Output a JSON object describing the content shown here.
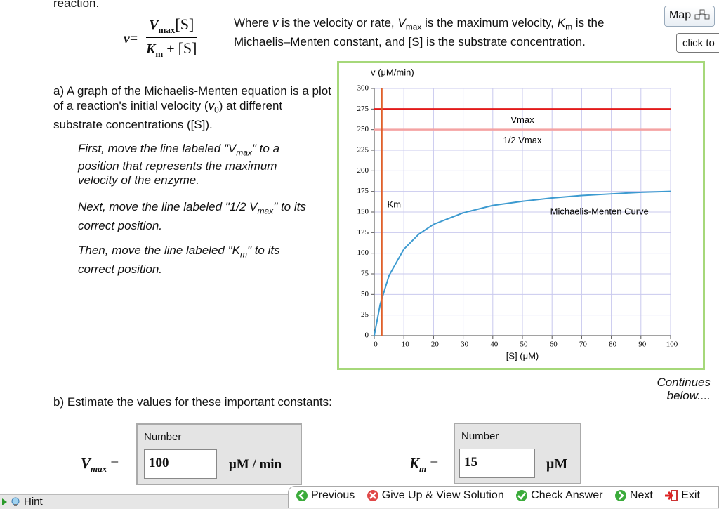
{
  "header_text": "reaction.",
  "equation": {
    "lhs": "v",
    "eq": "=",
    "num_var": "V",
    "num_sub": "max",
    "num_s": "[S]",
    "den_var": "K",
    "den_sub": "m",
    "plus": "+",
    "den_s": "[S]"
  },
  "description": [
    "Where ",
    "v",
    " is the velocity or rate, ",
    "V",
    "max",
    " is the maximum velocity, ",
    "K",
    "m",
    " is the",
    "Michaelis–Menten constant, and [S] is the substrate concentration."
  ],
  "map_button": "Map",
  "tooltip": "click to",
  "part_a": [
    "a) A graph of the Michaelis-Menten equation is a plot of a reaction's initial velocity (",
    "v",
    "0",
    ") at different substrate concentrations ([S])."
  ],
  "instructions": [
    [
      "First, move the line labeled \"V",
      "max",
      "\" to a position that represents the maximum velocity of the enzyme."
    ],
    [
      "Next, move the line labeled \"1/2 V",
      "max",
      "\" to its correct position."
    ],
    [
      "Then, move the line labeled \"K",
      "m",
      "\" to its correct position."
    ]
  ],
  "chart_data": {
    "type": "line",
    "y_label": "v (μM/min)",
    "x_label": "[S] (μM)",
    "xlim": [
      0,
      100
    ],
    "ylim": [
      0,
      300
    ],
    "xticks": [
      0,
      10,
      20,
      30,
      40,
      50,
      60,
      70,
      80,
      90,
      100
    ],
    "yticks": [
      0,
      25,
      50,
      75,
      100,
      125,
      150,
      175,
      200,
      225,
      250,
      275,
      300
    ],
    "grid": true,
    "series": [
      {
        "name": "Michaelis-Menten Curve",
        "color": "#3c9ad0",
        "x": [
          0,
          2,
          5,
          10,
          15,
          20,
          30,
          40,
          50,
          60,
          70,
          80,
          90,
          100
        ],
        "values": [
          0,
          38,
          73,
          105,
          123,
          135,
          149,
          158,
          163,
          167,
          170,
          172,
          174,
          175
        ]
      }
    ],
    "reference_lines": [
      {
        "name": "Vmax",
        "axis": "y",
        "value": 275,
        "color": "#e31a1a"
      },
      {
        "name": "1/2 Vmax",
        "axis": "y",
        "value": 250,
        "color": "#f4a3a3"
      },
      {
        "name": "Km",
        "axis": "x",
        "value": 2.5,
        "color": "#e0602a"
      }
    ]
  },
  "continues": "Continues below....",
  "part_b": "b) Estimate the values for these important constants:",
  "answers": [
    {
      "var": "V",
      "sub": "max",
      "eq": "=",
      "field_label": "Number",
      "value": 100,
      "unit": "μM / min"
    },
    {
      "var": "K",
      "sub": "m",
      "eq": "=",
      "field_label": "Number",
      "value": 15,
      "unit": "μM"
    }
  ],
  "hint": "Hint",
  "nav": [
    "Previous",
    "Give Up & View Solution",
    "Check Answer",
    "Next",
    "Exit"
  ]
}
